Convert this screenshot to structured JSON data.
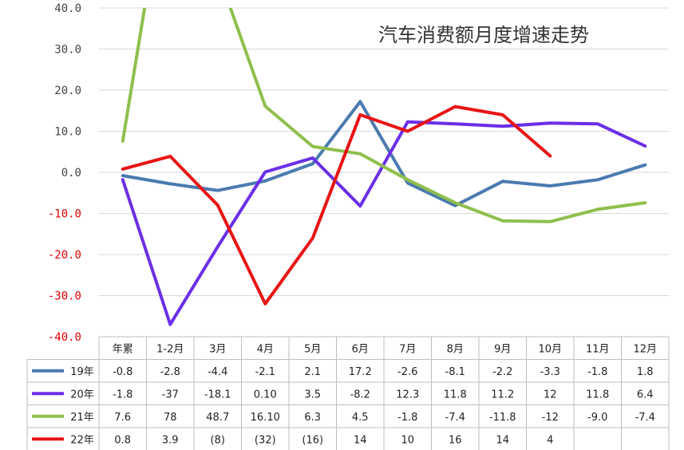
{
  "chart_data": {
    "type": "line",
    "title": "汽车消费额月度增速走势",
    "ylim": [
      -40,
      40
    ],
    "yticks": [
      {
        "value": 40,
        "label": "40.0"
      },
      {
        "value": 30,
        "label": "30.0"
      },
      {
        "value": 20,
        "label": "20.0"
      },
      {
        "value": 10,
        "label": "10.0"
      },
      {
        "value": 0,
        "label": "0.0"
      },
      {
        "value": -10,
        "label": "-10.0"
      },
      {
        "value": -20,
        "label": "-20.0"
      },
      {
        "value": -30,
        "label": "-30.0"
      },
      {
        "value": -40,
        "label": "-40.0"
      }
    ],
    "negative_tick_color": "#e00000",
    "positive_tick_color": "#444444",
    "grid": true,
    "legend": "bottom data table",
    "categories": [
      "年累",
      "1-2月",
      "3月",
      "4月",
      "5月",
      "6月",
      "7月",
      "8月",
      "9月",
      "10月",
      "11月",
      "12月"
    ],
    "series": [
      {
        "name": "19年",
        "color": "#4a7ab0",
        "values": [
          -0.8,
          -2.8,
          -4.4,
          -2.1,
          2.1,
          17.2,
          -2.6,
          -8.1,
          -2.2,
          -3.3,
          -1.8,
          1.8
        ],
        "labels": [
          "-0.8",
          "-2.8",
          "-4.4",
          "-2.1",
          "2.1",
          "17.2",
          "-2.6",
          "-8.1",
          "-2.2",
          "-3.3",
          "-1.8",
          "1.8"
        ]
      },
      {
        "name": "20年",
        "color": "#6a2fe8",
        "values": [
          -1.8,
          -37,
          -18.1,
          0.1,
          3.5,
          -8.2,
          12.3,
          11.8,
          11.2,
          12,
          11.8,
          6.4
        ],
        "labels": [
          "-1.8",
          "-37",
          "-18.1",
          "0.10",
          "3.5",
          "-8.2",
          "12.3",
          "11.8",
          "11.2",
          "12",
          "11.8",
          "6.4"
        ]
      },
      {
        "name": "21年",
        "color": "#8fbf4d",
        "values": [
          7.6,
          78,
          48.7,
          16.1,
          6.3,
          4.5,
          -1.8,
          -7.4,
          -11.8,
          -12,
          -9.0,
          -7.4
        ],
        "labels": [
          "7.6",
          "78",
          "48.7",
          "16.10",
          "6.3",
          "4.5",
          "-1.8",
          "-7.4",
          "-11.8",
          "-12",
          "-9.0",
          "-7.4"
        ]
      },
      {
        "name": "22年",
        "color": "#e81414",
        "values": [
          0.8,
          3.9,
          -8,
          -32,
          -16,
          14,
          10,
          16,
          14,
          4,
          null,
          null
        ],
        "labels": [
          "0.8",
          "3.9",
          "(8)",
          "(32)",
          "(16)",
          "14",
          "10",
          "16",
          "14",
          "4",
          "",
          ""
        ]
      }
    ]
  }
}
